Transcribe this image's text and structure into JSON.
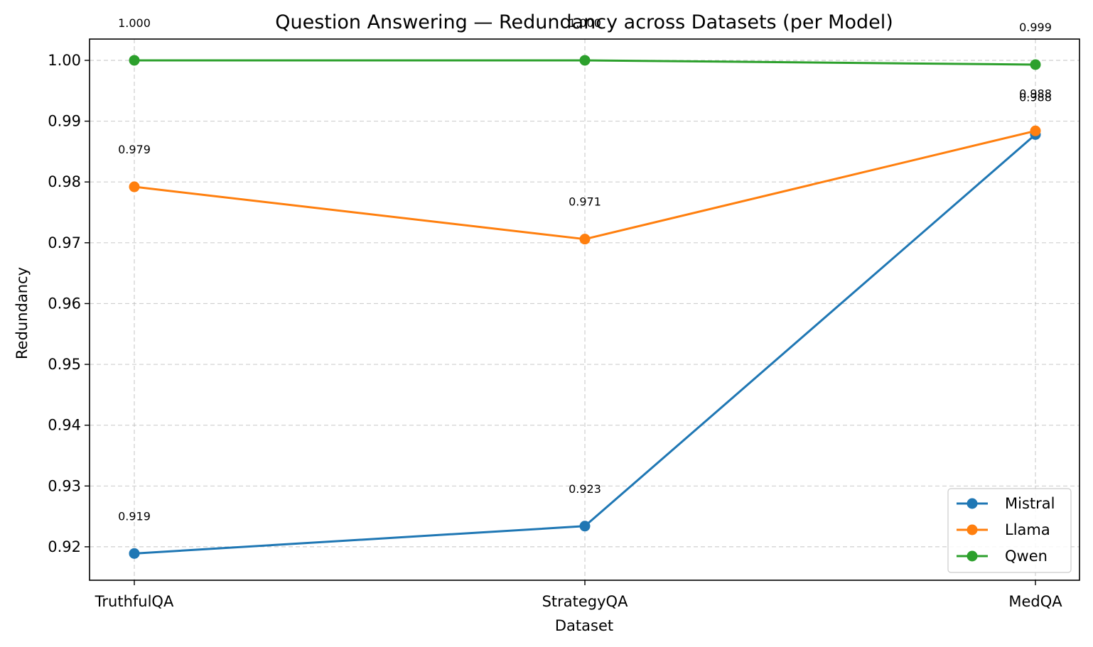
{
  "chart_data": {
    "type": "line",
    "title": "Question Answering — Redundancy across Datasets (per Model)",
    "xlabel": "Dataset",
    "ylabel": "Redundancy",
    "categories": [
      "TruthfulQA",
      "StrategyQA",
      "MedQA"
    ],
    "ylim": [
      0.9145,
      1.0035
    ],
    "yticks": [
      0.92,
      0.93,
      0.94,
      0.95,
      0.96,
      0.97,
      0.98,
      0.99,
      1.0
    ],
    "ytick_labels": [
      "0.92",
      "0.93",
      "0.94",
      "0.95",
      "0.96",
      "0.97",
      "0.98",
      "0.99",
      "1.00"
    ],
    "grid": true,
    "legend_position": "bottom-right",
    "series": [
      {
        "name": "Mistral",
        "color": "#1f77b4",
        "values": [
          0.9189,
          0.9234,
          0.9878
        ],
        "labels": [
          "0.919",
          "0.923",
          "0.988"
        ]
      },
      {
        "name": "Llama",
        "color": "#ff7f0e",
        "values": [
          0.9792,
          0.9706,
          0.9884
        ],
        "labels": [
          "0.979",
          "0.971",
          "0.988"
        ]
      },
      {
        "name": "Qwen",
        "color": "#2ca02c",
        "values": [
          1.0,
          1.0,
          0.9993
        ],
        "labels": [
          "1.000",
          "1.000",
          "0.999"
        ]
      }
    ]
  }
}
